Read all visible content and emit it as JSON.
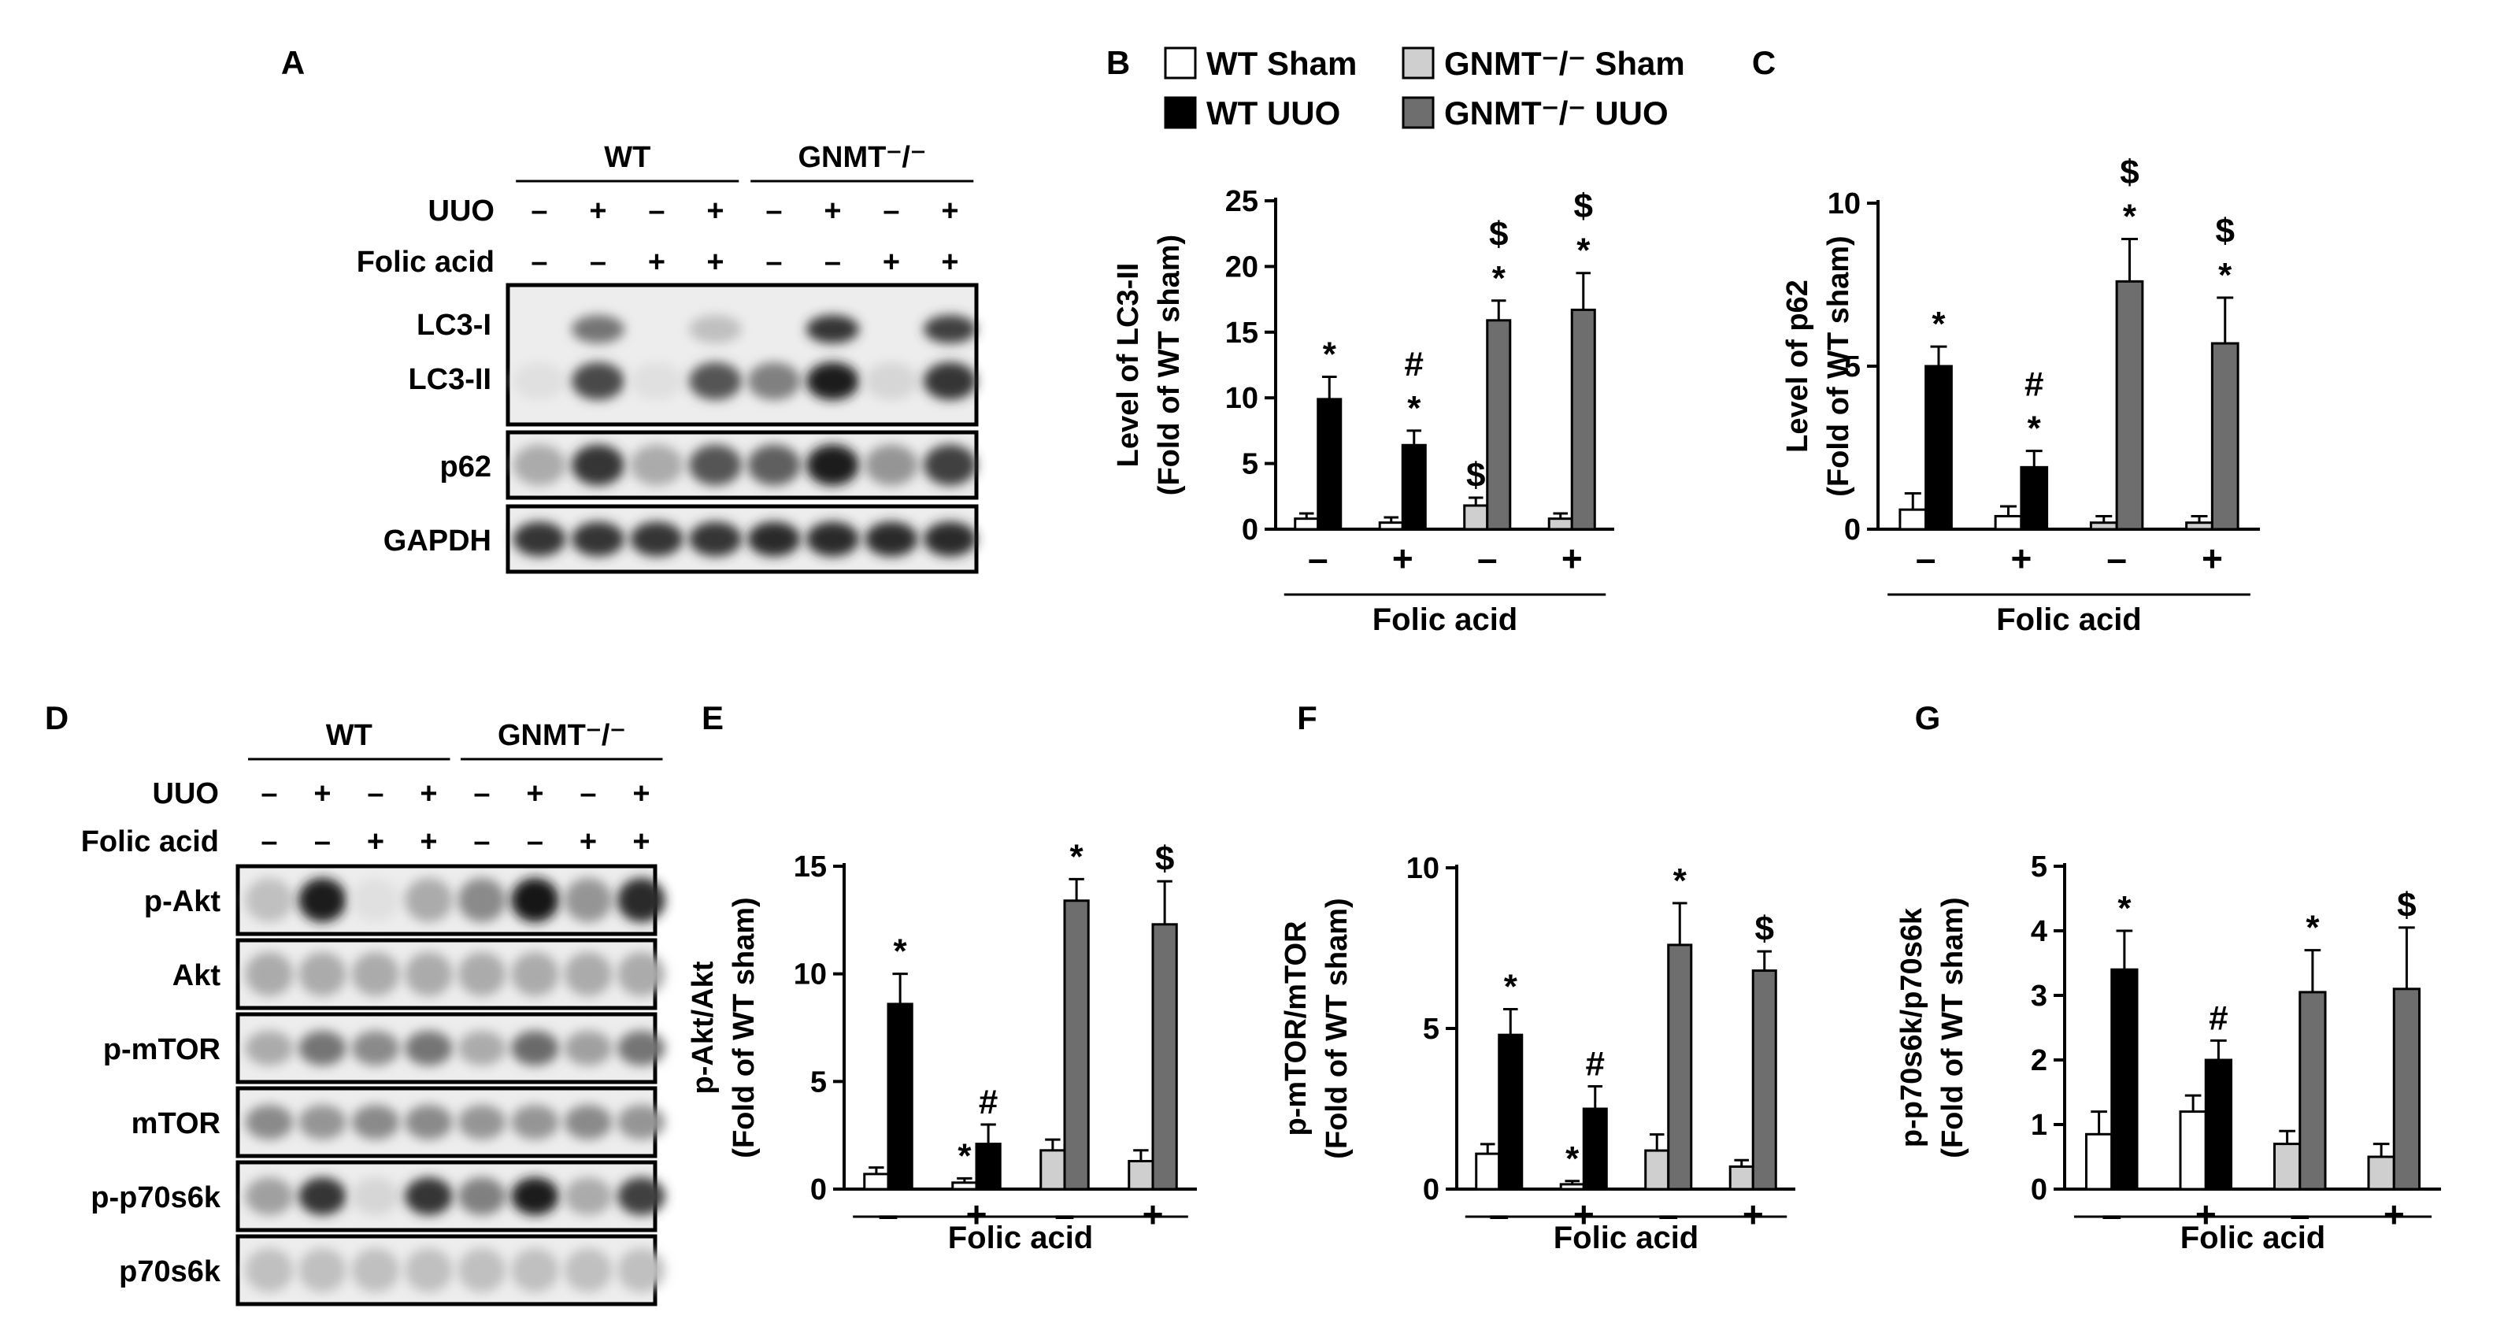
{
  "colors": {
    "wt_sham": "#ffffff",
    "wt_uuo": "#000000",
    "ko_sham": "#cfcfcf",
    "ko_uuo": "#6e6e6e"
  },
  "legend": {
    "items": [
      {
        "name": "WT Sham",
        "key": "wt_sham"
      },
      {
        "name": "GNMT⁻/⁻ Sham",
        "key": "ko_sham"
      },
      {
        "name": "WT UUO",
        "key": "wt_uuo"
      },
      {
        "name": "GNMT⁻/⁻ UUO",
        "key": "ko_uuo"
      }
    ]
  },
  "blot_a": {
    "panel_label": "A",
    "group_labels": [
      "WT",
      "GNMT⁻/⁻"
    ],
    "row_labels": [
      "UUO",
      "Folic acid"
    ],
    "uuo": [
      "–",
      "+",
      "–",
      "+",
      "–",
      "+",
      "–",
      "+"
    ],
    "folic": [
      "–",
      "–",
      "+",
      "+",
      "–",
      "–",
      "+",
      "+"
    ],
    "bands": [
      {
        "label": "LC3-I",
        "intensity": [
          0,
          0.55,
          0,
          0.2,
          0,
          0.85,
          0,
          0.8
        ]
      },
      {
        "label": "LC3-II",
        "intensity": [
          0.05,
          0.75,
          0.05,
          0.7,
          0.5,
          0.95,
          0.1,
          0.85
        ]
      },
      {
        "label": "p62",
        "intensity": [
          0.3,
          0.85,
          0.3,
          0.7,
          0.65,
          0.95,
          0.4,
          0.8
        ]
      },
      {
        "label": "GAPDH",
        "intensity": [
          0.85,
          0.85,
          0.85,
          0.85,
          0.9,
          0.9,
          0.9,
          0.9
        ]
      }
    ]
  },
  "blot_d": {
    "panel_label": "D",
    "group_labels": [
      "WT",
      "GNMT⁻/⁻"
    ],
    "row_labels": [
      "UUO",
      "Folic acid"
    ],
    "uuo": [
      "–",
      "+",
      "–",
      "+",
      "–",
      "+",
      "–",
      "+"
    ],
    "folic": [
      "–",
      "–",
      "+",
      "+",
      "–",
      "–",
      "+",
      "+"
    ],
    "bands": [
      {
        "label": "p-Akt",
        "intensity": [
          0.2,
          0.95,
          0.05,
          0.3,
          0.45,
          1.0,
          0.4,
          0.9
        ]
      },
      {
        "label": "Akt",
        "intensity": [
          0.3,
          0.3,
          0.3,
          0.3,
          0.3,
          0.3,
          0.3,
          0.3
        ]
      },
      {
        "label": "p-mTOR",
        "intensity": [
          0.3,
          0.55,
          0.45,
          0.55,
          0.3,
          0.6,
          0.35,
          0.55
        ]
      },
      {
        "label": "mTOR",
        "intensity": [
          0.45,
          0.4,
          0.45,
          0.45,
          0.4,
          0.4,
          0.45,
          0.4
        ]
      },
      {
        "label": "p-p70s6k",
        "intensity": [
          0.35,
          0.85,
          0.1,
          0.85,
          0.5,
          0.95,
          0.3,
          0.8
        ]
      },
      {
        "label": "p70s6k",
        "intensity": [
          0.2,
          0.2,
          0.2,
          0.2,
          0.2,
          0.2,
          0.2,
          0.2
        ]
      }
    ]
  },
  "chart_data": [
    {
      "panel_label": "B",
      "type": "bar",
      "ylabel_lines": [
        "Level of LC3-II",
        "(Fold of WT sham)"
      ],
      "xlabel": "Folic acid",
      "x_ticks": [
        "–",
        "+",
        "–",
        "+"
      ],
      "yticks": [
        0,
        5,
        10,
        15,
        20,
        25
      ],
      "ylim": [
        0,
        25
      ],
      "groups": [
        {
          "bars": [
            {
              "key": "wt_sham",
              "value": 0.8,
              "err": 0.4,
              "marks": []
            },
            {
              "key": "wt_uuo",
              "value": 9.9,
              "err": 1.7,
              "marks": [
                "*"
              ]
            }
          ]
        },
        {
          "bars": [
            {
              "key": "wt_sham",
              "value": 0.5,
              "err": 0.4,
              "marks": []
            },
            {
              "key": "wt_uuo",
              "value": 6.4,
              "err": 1.1,
              "marks": [
                "*",
                "#"
              ]
            }
          ]
        },
        {
          "bars": [
            {
              "key": "ko_sham",
              "value": 1.8,
              "err": 0.6,
              "marks": [
                "$"
              ]
            },
            {
              "key": "ko_uuo",
              "value": 15.9,
              "err": 1.5,
              "marks": [
                "*",
                "$"
              ]
            }
          ]
        },
        {
          "bars": [
            {
              "key": "ko_sham",
              "value": 0.8,
              "err": 0.4,
              "marks": []
            },
            {
              "key": "ko_uuo",
              "value": 16.7,
              "err": 2.8,
              "marks": [
                "*",
                "$"
              ]
            }
          ]
        }
      ]
    },
    {
      "panel_label": "C",
      "type": "bar",
      "ylabel_lines": [
        "Level of p62",
        "(Fold of WT sham)"
      ],
      "xlabel": "Folic acid",
      "x_ticks": [
        "–",
        "+",
        "–",
        "+"
      ],
      "yticks": [
        0,
        5,
        10
      ],
      "ylim": [
        0,
        10
      ],
      "groups": [
        {
          "bars": [
            {
              "key": "wt_sham",
              "value": 0.6,
              "err": 0.5,
              "marks": []
            },
            {
              "key": "wt_uuo",
              "value": 5.0,
              "err": 0.6,
              "marks": [
                "*"
              ]
            }
          ]
        },
        {
          "bars": [
            {
              "key": "wt_sham",
              "value": 0.4,
              "err": 0.3,
              "marks": []
            },
            {
              "key": "wt_uuo",
              "value": 1.9,
              "err": 0.5,
              "marks": [
                "*",
                "#"
              ]
            }
          ]
        },
        {
          "bars": [
            {
              "key": "ko_sham",
              "value": 0.2,
              "err": 0.2,
              "marks": []
            },
            {
              "key": "ko_uuo",
              "value": 7.6,
              "err": 1.3,
              "marks": [
                "*",
                "$"
              ]
            }
          ]
        },
        {
          "bars": [
            {
              "key": "ko_sham",
              "value": 0.2,
              "err": 0.2,
              "marks": []
            },
            {
              "key": "ko_uuo",
              "value": 5.7,
              "err": 1.4,
              "marks": [
                "*",
                "$"
              ]
            }
          ]
        }
      ]
    },
    {
      "panel_label": "E",
      "type": "bar",
      "ylabel_lines": [
        "p-Akt/Akt",
        "(Fold of WT sham)"
      ],
      "xlabel": "Folic acid",
      "x_ticks": [
        "–",
        "+",
        "–",
        "+"
      ],
      "yticks": [
        0,
        5,
        10,
        15
      ],
      "ylim": [
        0,
        15
      ],
      "groups": [
        {
          "bars": [
            {
              "key": "wt_sham",
              "value": 0.7,
              "err": 0.3,
              "marks": []
            },
            {
              "key": "wt_uuo",
              "value": 8.6,
              "err": 1.4,
              "marks": [
                "*"
              ]
            }
          ]
        },
        {
          "bars": [
            {
              "key": "wt_sham",
              "value": 0.3,
              "err": 0.2,
              "marks": [
                "*"
              ]
            },
            {
              "key": "wt_uuo",
              "value": 2.1,
              "err": 0.9,
              "marks": [
                "#"
              ]
            }
          ]
        },
        {
          "bars": [
            {
              "key": "ko_sham",
              "value": 1.8,
              "err": 0.5,
              "marks": []
            },
            {
              "key": "ko_uuo",
              "value": 13.4,
              "err": 1.0,
              "marks": [
                "*"
              ]
            }
          ]
        },
        {
          "bars": [
            {
              "key": "ko_sham",
              "value": 1.3,
              "err": 0.5,
              "marks": []
            },
            {
              "key": "ko_uuo",
              "value": 12.3,
              "err": 2.0,
              "marks": [
                "$"
              ]
            }
          ]
        }
      ]
    },
    {
      "panel_label": "F",
      "type": "bar",
      "ylabel_lines": [
        "p-mTOR/mTOR",
        "(Fold of WT sham)"
      ],
      "xlabel": "Folic acid",
      "x_ticks": [
        "–",
        "+",
        "–",
        "+"
      ],
      "yticks": [
        0,
        5,
        10
      ],
      "ylim": [
        0,
        10
      ],
      "groups": [
        {
          "bars": [
            {
              "key": "wt_sham",
              "value": 1.1,
              "err": 0.3,
              "marks": []
            },
            {
              "key": "wt_uuo",
              "value": 4.8,
              "err": 0.8,
              "marks": [
                "*"
              ]
            }
          ]
        },
        {
          "bars": [
            {
              "key": "wt_sham",
              "value": 0.15,
              "err": 0.1,
              "marks": [
                "*"
              ]
            },
            {
              "key": "wt_uuo",
              "value": 2.5,
              "err": 0.7,
              "marks": [
                "#"
              ]
            }
          ]
        },
        {
          "bars": [
            {
              "key": "ko_sham",
              "value": 1.2,
              "err": 0.5,
              "marks": []
            },
            {
              "key": "ko_uuo",
              "value": 7.6,
              "err": 1.3,
              "marks": [
                "*"
              ]
            }
          ]
        },
        {
          "bars": [
            {
              "key": "ko_sham",
              "value": 0.7,
              "err": 0.2,
              "marks": []
            },
            {
              "key": "ko_uuo",
              "value": 6.8,
              "err": 0.6,
              "marks": [
                "$"
              ]
            }
          ]
        }
      ]
    },
    {
      "panel_label": "G",
      "type": "bar",
      "ylabel_lines": [
        "p-p70s6k/p70s6k",
        "(Fold of WT sham)"
      ],
      "xlabel": "Folic acid",
      "x_ticks": [
        "–",
        "+",
        "–",
        "+"
      ],
      "yticks": [
        0,
        1,
        2,
        3,
        4,
        5
      ],
      "ylim": [
        0,
        5
      ],
      "groups": [
        {
          "bars": [
            {
              "key": "wt_sham",
              "value": 0.85,
              "err": 0.35,
              "marks": []
            },
            {
              "key": "wt_uuo",
              "value": 3.4,
              "err": 0.6,
              "marks": [
                "*"
              ]
            }
          ]
        },
        {
          "bars": [
            {
              "key": "wt_sham",
              "value": 1.2,
              "err": 0.25,
              "marks": []
            },
            {
              "key": "wt_uuo",
              "value": 2.0,
              "err": 0.3,
              "marks": [
                "#"
              ]
            }
          ]
        },
        {
          "bars": [
            {
              "key": "ko_sham",
              "value": 0.7,
              "err": 0.2,
              "marks": []
            },
            {
              "key": "ko_uuo",
              "value": 3.05,
              "err": 0.65,
              "marks": [
                "*"
              ]
            }
          ]
        },
        {
          "bars": [
            {
              "key": "ko_sham",
              "value": 0.5,
              "err": 0.2,
              "marks": []
            },
            {
              "key": "ko_uuo",
              "value": 3.1,
              "err": 0.95,
              "marks": [
                "$"
              ]
            }
          ]
        }
      ]
    }
  ]
}
